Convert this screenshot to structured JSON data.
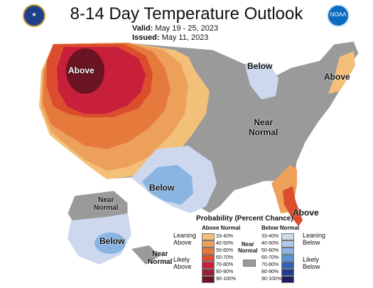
{
  "header": {
    "title": "8-14 Day Temperature Outlook",
    "valid_label": "Valid:",
    "valid_value": "May 19 - 25, 2023",
    "issued_label": "Issued:",
    "issued_value": "May 11, 2023",
    "left_logo": "seal-icon",
    "right_logo": "noaa-logo-icon",
    "right_logo_text": "NOAA"
  },
  "map": {
    "labels": {
      "above_west": "Above",
      "above_northeast": "Above",
      "above_florida": "Above",
      "below_great_lakes": "Below",
      "below_texas": "Below",
      "below_alaska": "Below",
      "near_normal_central": "Near\nNormal",
      "near_normal_alaska_north": "Near\nNormal",
      "near_normal_alaska_south": "Near\nNormal"
    }
  },
  "legend": {
    "title": "Probability (Percent Chance)",
    "above_header": "Above Normal",
    "below_header": "Below Normal",
    "near_header": "Near\nNormal",
    "leaning_above": "Leaning\nAbove",
    "likely_above": "Likely\nAbove",
    "leaning_below": "Leaning\nBelow",
    "likely_below": "Likely\nBelow",
    "above_bins": [
      {
        "label": "33-40%",
        "color": "#f3c07a"
      },
      {
        "label": "40-50%",
        "color": "#eca05a"
      },
      {
        "label": "50-60%",
        "color": "#e57a3c"
      },
      {
        "label": "60-70%",
        "color": "#dc4d2e"
      },
      {
        "label": "70-80%",
        "color": "#c8203a"
      },
      {
        "label": "80-90%",
        "color": "#99203a"
      },
      {
        "label": "90-100%",
        "color": "#6b1424"
      }
    ],
    "below_bins": [
      {
        "label": "33-40%",
        "color": "#cdd8ef"
      },
      {
        "label": "40-50%",
        "color": "#b3c9ea"
      },
      {
        "label": "50-60%",
        "color": "#8ab5e2"
      },
      {
        "label": "60-70%",
        "color": "#5b93d1"
      },
      {
        "label": "70-80%",
        "color": "#2f64b4"
      },
      {
        "label": "80-90%",
        "color": "#243a8c"
      },
      {
        "label": "90-100%",
        "color": "#1b1e5e"
      }
    ],
    "near_color": "#9a9a9a"
  },
  "colors": {
    "near_normal": "#9a9a9a",
    "background": "#ffffff"
  }
}
